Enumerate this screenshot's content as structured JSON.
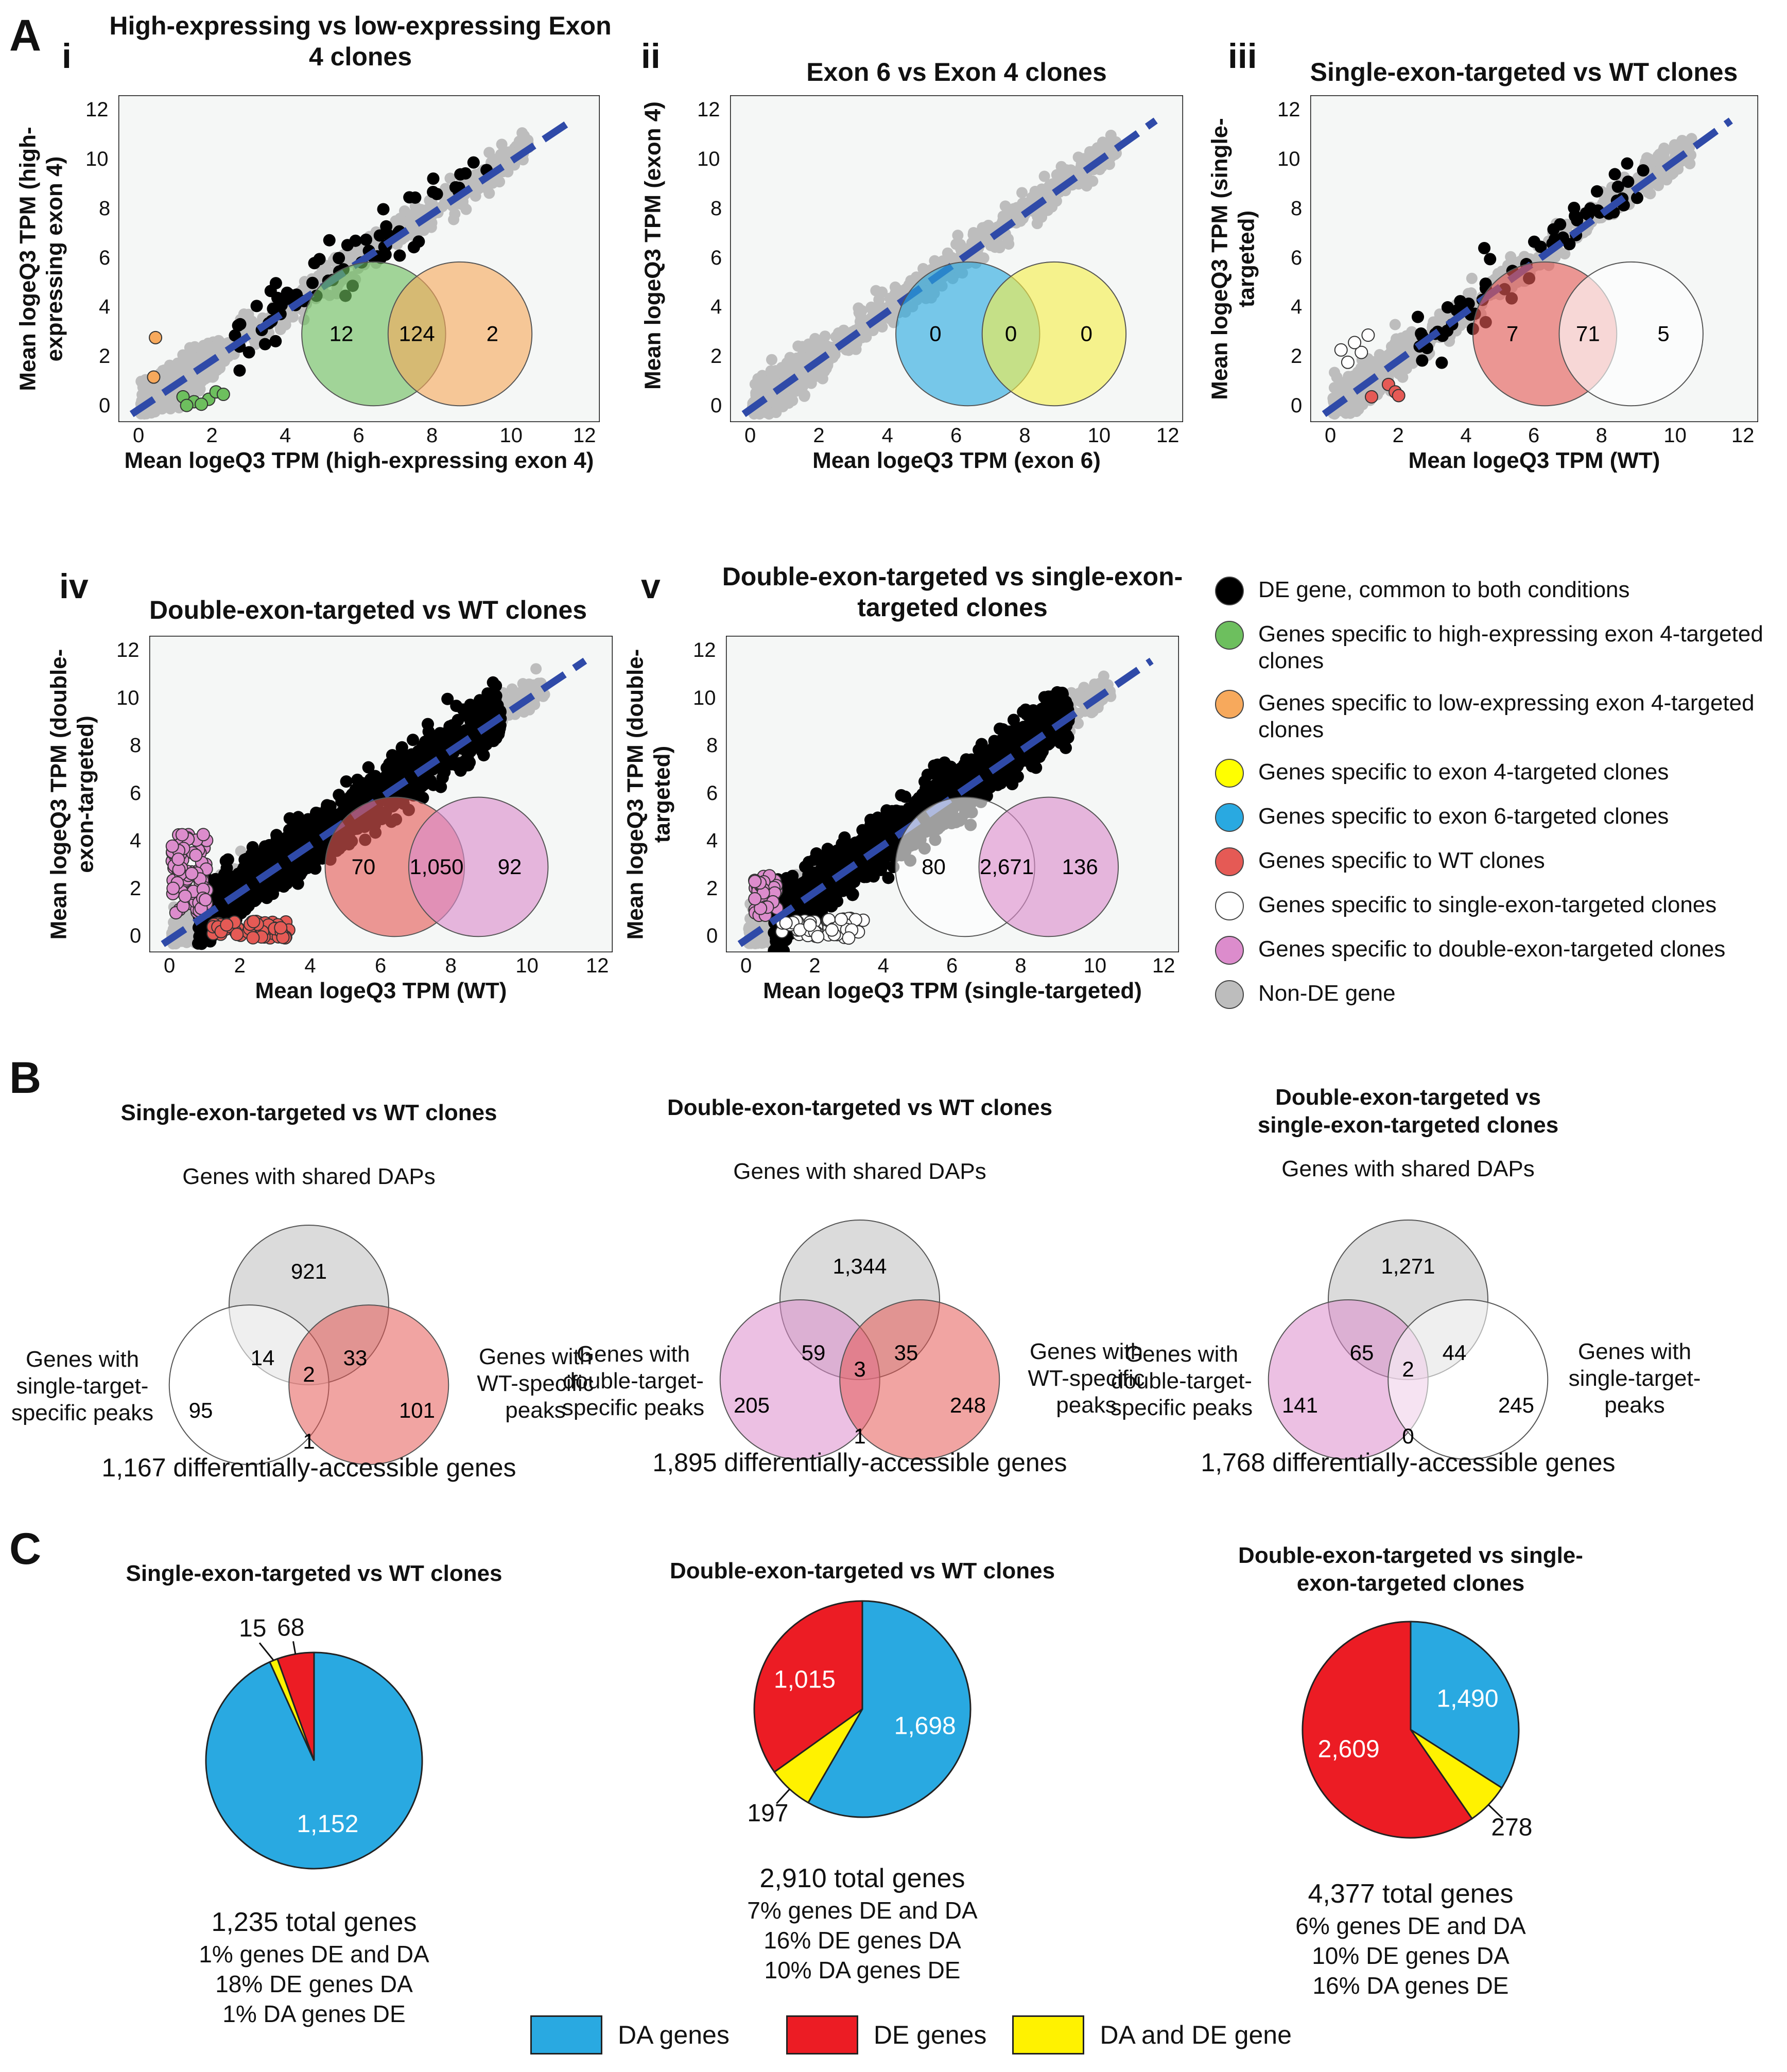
{
  "colors": {
    "common": "#000000",
    "high_exon4": "#6dbf5e",
    "low_exon4": "#f4a460",
    "exon4": "#ffff00",
    "exon6": "#29a9e1",
    "wt": "#e55a55",
    "single": "#ffffff",
    "double": "#dc8ccc",
    "nonde": "#bdbdbd",
    "fit": "#2f4aa8",
    "da": "#29a9e1",
    "de": "#ec1c24",
    "both": "#fff200"
  },
  "panels": {
    "A": "A",
    "B": "B",
    "C": "C"
  },
  "scatter": [
    {
      "roman": "i",
      "title": "High-expressing vs low-expressing Exon 4 clones",
      "ylabel": "Mean logeQ3 TPM (high-expressing exon 4)",
      "xlabel": "Mean logeQ3 TPM (high-expressing exon 4)",
      "ticks": [
        "0",
        "2",
        "4",
        "6",
        "8",
        "10",
        "12"
      ],
      "venn": {
        "left": "12",
        "mid": "124",
        "right": "2",
        "lc": "#6dbf5e",
        "rc": "#f7a95c"
      }
    },
    {
      "roman": "ii",
      "title": "Exon 6 vs Exon 4 clones",
      "ylabel": "Mean logeQ3 TPM (exon 4)",
      "xlabel": "Mean logeQ3 TPM (exon 6)",
      "ticks": [
        "0",
        "2",
        "4",
        "6",
        "8",
        "10",
        "12"
      ],
      "venn": {
        "left": "0",
        "mid": "0",
        "right": "0",
        "lc": "#29a9e1",
        "rc": "#f5ef4a"
      }
    },
    {
      "roman": "iii",
      "title": "Single-exon-targeted vs WT clones",
      "ylabel": "Mean logeQ3 TPM (single-targeted)",
      "xlabel": "Mean logeQ3 TPM (WT)",
      "ticks": [
        "0",
        "2",
        "4",
        "6",
        "8",
        "10",
        "12"
      ],
      "venn": {
        "left": "7",
        "mid": "71",
        "right": "5",
        "lc": "#e55a55",
        "rc": "#ffffff"
      }
    },
    {
      "roman": "iv",
      "title": "Double-exon-targeted vs WT clones",
      "ylabel": "Mean logeQ3 TPM (double-exon-targeted)",
      "xlabel": "Mean logeQ3 TPM (WT)",
      "ticks": [
        "0",
        "2",
        "4",
        "6",
        "8",
        "10",
        "12"
      ],
      "venn": {
        "left": "70",
        "mid": "1,050",
        "right": "92",
        "lc": "#e55a55",
        "rc": "#dc8ccc"
      }
    },
    {
      "roman": "v",
      "title": "Double-exon-targeted vs single-exon-targeted clones",
      "ylabel": "Mean logeQ3 TPM (double-targeted)",
      "xlabel": "Mean logeQ3 TPM (single-targeted)",
      "ticks": [
        "0",
        "2",
        "4",
        "6",
        "8",
        "10",
        "12"
      ],
      "venn": {
        "left": "80",
        "mid": "2,671",
        "right": "136",
        "lc": "#ffffff",
        "rc": "#dc8ccc"
      }
    }
  ],
  "legend": [
    {
      "label": "DE gene, common to both conditions",
      "color": "#000000"
    },
    {
      "label": "Genes specific to high-expressing exon 4-targeted clones",
      "color": "#6dbf5e"
    },
    {
      "label": "Genes specific to low-expressing exon 4-targeted clones",
      "color": "#f7a95c"
    },
    {
      "label": "Genes specific to exon 4-targeted clones",
      "color": "#ffff00"
    },
    {
      "label": "Genes specific to exon 6-targeted clones",
      "color": "#29a9e1"
    },
    {
      "label": "Genes specific to WT clones",
      "color": "#e55a55"
    },
    {
      "label": "Genes specific to single-exon-targeted clones",
      "color": "#ffffff"
    },
    {
      "label": "Genes specific to double-exon-targeted clones",
      "color": "#dc8ccc"
    },
    {
      "label": "Non-DE gene",
      "color": "#bdbdbd"
    }
  ],
  "venn3": [
    {
      "title": "Single-exon-targeted vs WT clones",
      "top_label": "Genes with shared DAPs",
      "left_label": "Genes with single-target-specific peaks",
      "right_label": "Genes with WT-specific peaks",
      "nums": {
        "top": "921",
        "tl": "14",
        "tr": "33",
        "center": "2",
        "left": "95",
        "right": "101",
        "bottom": "1"
      },
      "total": "1,167 differentially-accessible genes",
      "lc": "#ffffff",
      "rc": "#e55a55"
    },
    {
      "title": "Double-exon-targeted vs WT clones",
      "top_label": "Genes with shared DAPs",
      "left_label": "Genes with double-target-specific peaks",
      "right_label": "Genes with WT-specific peaks",
      "nums": {
        "top": "1,344",
        "tl": "59",
        "tr": "35",
        "center": "3",
        "left": "205",
        "right": "248",
        "bottom": "1"
      },
      "total": "1,895 differentially-accessible genes",
      "lc": "#dc8ccc",
      "rc": "#e55a55"
    },
    {
      "title": "Double-exon-targeted vs single-exon-targeted clones",
      "top_label": "Genes with shared DAPs",
      "left_label": "Genes with double-target-specific peaks",
      "right_label": "Genes with single-target-peaks",
      "nums": {
        "top": "1,271",
        "tl": "65",
        "tr": "44",
        "center": "2",
        "left": "141",
        "right": "245",
        "bottom": "0"
      },
      "total": "1,768 differentially-accessible genes",
      "lc": "#dc8ccc",
      "rc": "#ffffff"
    }
  ],
  "chart_data": [
    {
      "type": "pie",
      "title": "Single-exon-targeted vs WT clones",
      "labels": [
        "DA genes",
        "DE genes",
        "DA and DE gene"
      ],
      "values": [
        1152,
        68,
        15
      ],
      "value_labels": [
        "1,152",
        "68",
        "15"
      ],
      "total": "1,235 total genes",
      "stats": [
        "1% genes DE and DA",
        "18% DE genes DA",
        "1% DA genes DE"
      ]
    },
    {
      "type": "pie",
      "title": "Double-exon-targeted vs WT clones",
      "labels": [
        "DA genes",
        "DE genes",
        "DA and DE gene"
      ],
      "values": [
        1698,
        1015,
        197
      ],
      "value_labels": [
        "1,698",
        "1,015",
        "197"
      ],
      "total": "2,910 total genes",
      "stats": [
        "7% genes DE and DA",
        "16% DE genes DA",
        "10% DA genes DE"
      ]
    },
    {
      "type": "pie",
      "title": "Double-exon-targeted vs single-exon-targeted clones",
      "labels": [
        "DA genes",
        "DE genes",
        "DA and DE gene"
      ],
      "values": [
        1490,
        2609,
        278
      ],
      "value_labels": [
        "1,490",
        "2,609",
        "278"
      ],
      "total": "4,377 total genes",
      "stats": [
        "6% genes DE and DA",
        "10% DE genes DA",
        "16% DA genes DE"
      ]
    }
  ],
  "pie_legend": [
    "DA genes",
    "DE genes",
    "DA and DE gene"
  ]
}
